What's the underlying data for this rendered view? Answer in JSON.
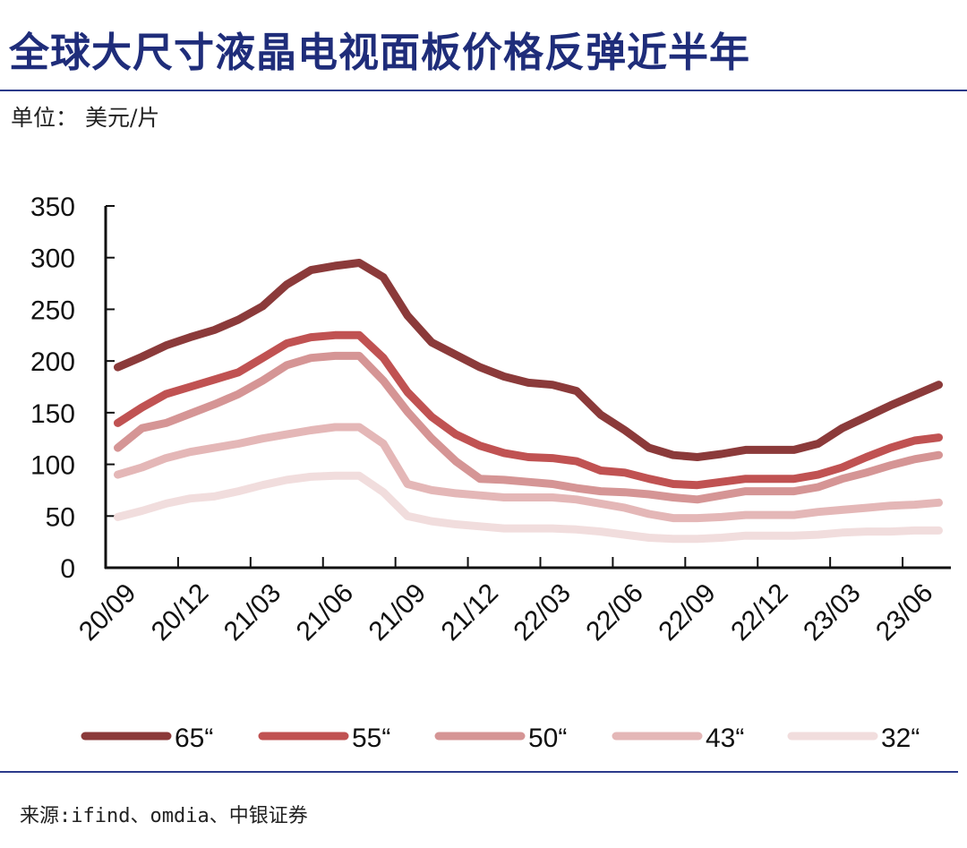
{
  "title": "全球大尺寸液晶电视面板价格反弹近半年",
  "unit": "单位： 美元/片",
  "source": "来源:ifind、omdia、中银证券",
  "chart_data": {
    "type": "line",
    "title": "",
    "xlabel": "",
    "ylabel": "",
    "ylim": [
      0,
      350
    ],
    "yticks": [
      0,
      50,
      100,
      150,
      200,
      250,
      300,
      350
    ],
    "grid": false,
    "legend_position": "bottom",
    "x": [
      "20/09",
      "20/10",
      "20/11",
      "20/12",
      "21/01",
      "21/02",
      "21/03",
      "21/04",
      "21/05",
      "21/06",
      "21/07",
      "21/08",
      "21/09",
      "21/10",
      "21/11",
      "21/12",
      "22/01",
      "22/02",
      "22/03",
      "22/04",
      "22/05",
      "22/06",
      "22/07",
      "22/08",
      "22/09",
      "22/10",
      "22/11",
      "22/12",
      "23/01",
      "23/02",
      "23/03",
      "23/04",
      "23/05",
      "23/06",
      "23/07"
    ],
    "xtick_labels": [
      "20/09",
      "20/12",
      "21/03",
      "21/06",
      "21/09",
      "21/12",
      "22/03",
      "22/06",
      "22/09",
      "22/12",
      "23/03",
      "23/06"
    ],
    "series": [
      {
        "name": "65“",
        "color": "#8b3a3a",
        "values": [
          194,
          204,
          215,
          223,
          230,
          240,
          253,
          274,
          288,
          292,
          295,
          281,
          244,
          218,
          206,
          194,
          185,
          179,
          177,
          171,
          148,
          133,
          116,
          109,
          107,
          110,
          114,
          114,
          114,
          120,
          135,
          146,
          157,
          167,
          177
        ]
      },
      {
        "name": "55“",
        "color": "#c05252",
        "values": [
          140,
          155,
          168,
          175,
          182,
          189,
          203,
          217,
          223,
          225,
          225,
          203,
          170,
          146,
          129,
          118,
          111,
          107,
          106,
          103,
          94,
          92,
          86,
          81,
          80,
          83,
          86,
          86,
          86,
          90,
          97,
          107,
          116,
          123,
          126
        ]
      },
      {
        "name": "50“",
        "color": "#d59595",
        "values": [
          116,
          135,
          140,
          149,
          158,
          168,
          181,
          196,
          203,
          205,
          205,
          181,
          151,
          125,
          103,
          86,
          85,
          83,
          81,
          77,
          74,
          73,
          71,
          68,
          66,
          70,
          74,
          74,
          74,
          78,
          86,
          92,
          99,
          105,
          109
        ]
      },
      {
        "name": "43“",
        "color": "#e4b7b7",
        "values": [
          90,
          97,
          106,
          112,
          116,
          120,
          125,
          129,
          133,
          136,
          136,
          120,
          81,
          75,
          72,
          70,
          68,
          68,
          68,
          66,
          62,
          58,
          52,
          48,
          48,
          49,
          51,
          51,
          51,
          54,
          56,
          58,
          60,
          61,
          63
        ]
      },
      {
        "name": "32“",
        "color": "#f1dddd",
        "values": [
          49,
          55,
          62,
          67,
          69,
          74,
          80,
          85,
          88,
          89,
          89,
          73,
          50,
          45,
          42,
          40,
          38,
          38,
          38,
          37,
          35,
          32,
          29,
          28,
          28,
          29,
          31,
          31,
          31,
          32,
          34,
          35,
          35,
          36,
          36
        ]
      }
    ]
  }
}
